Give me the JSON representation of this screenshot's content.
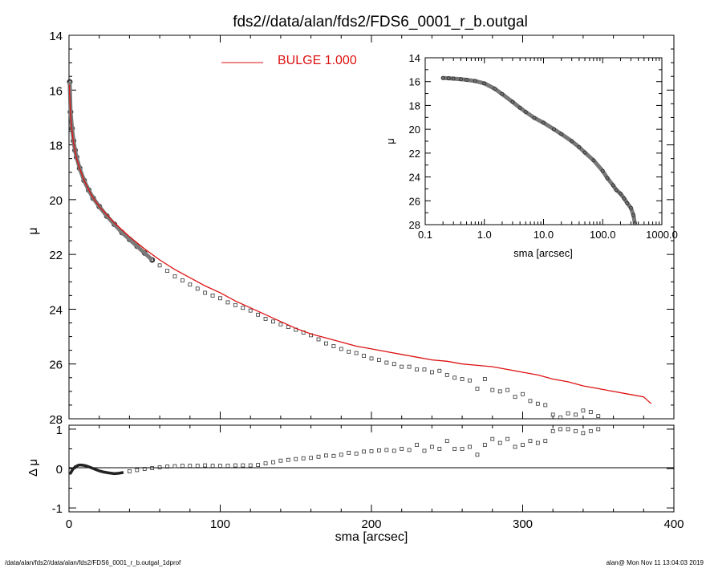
{
  "title": "fds2//data/alan/fds2/FDS6_0001_r_b.outgal",
  "footer": {
    "left": "/data/alan/fds2//data/alan/fds2/FDS6_0001_r_b.outgal_1dprof",
    "right": "alan@  Mon Nov 11 13:04:03 2019"
  },
  "colors": {
    "model": "#dd1111",
    "data": "#333333",
    "frame": "#000000"
  },
  "chart_data": [
    {
      "id": "main-profile",
      "type": "scatter",
      "ylabel": "μ",
      "xlim": [
        0,
        400
      ],
      "ylim": [
        28,
        14
      ],
      "y_inverted": true,
      "yticks": [
        "14",
        "16",
        "18",
        "20",
        "22",
        "24",
        "26",
        "28"
      ],
      "legend": {
        "label": "BULGE  1.000",
        "placement": "top-center",
        "color": "#dd1111"
      },
      "series": [
        {
          "name": "BULGE  1.000",
          "kind": "line",
          "x": [
            0.2,
            1,
            2,
            3,
            5,
            7,
            10,
            15,
            20,
            30,
            40,
            50,
            60,
            70,
            80,
            90,
            100,
            110,
            120,
            130,
            140,
            150,
            160,
            170,
            180,
            190,
            200,
            210,
            220,
            230,
            240,
            250,
            260,
            270,
            280,
            290,
            300,
            310,
            320,
            330,
            340,
            350,
            360,
            370,
            380,
            385
          ],
          "y": [
            15.8,
            16.9,
            17.5,
            17.95,
            18.5,
            18.85,
            19.3,
            19.85,
            20.25,
            20.85,
            21.35,
            21.8,
            22.2,
            22.55,
            22.85,
            23.15,
            23.4,
            23.7,
            23.95,
            24.2,
            24.45,
            24.7,
            24.9,
            25.05,
            25.2,
            25.35,
            25.45,
            25.55,
            25.65,
            25.75,
            25.85,
            25.9,
            26.0,
            26.05,
            26.1,
            26.2,
            26.3,
            26.4,
            26.55,
            26.65,
            26.8,
            26.9,
            27.0,
            27.1,
            27.2,
            27.45
          ]
        },
        {
          "kind": "points",
          "x": [
            0.5,
            1,
            2,
            3,
            4,
            5,
            7,
            10,
            13,
            16,
            20,
            25,
            30,
            35,
            40,
            45,
            50,
            55,
            60,
            65,
            70,
            75,
            80,
            85,
            90,
            95,
            100,
            105,
            110,
            115,
            120,
            125,
            130,
            135,
            140,
            145,
            150,
            155,
            160,
            165,
            170,
            175,
            180,
            185,
            190,
            195,
            200,
            205,
            210,
            215,
            220,
            225,
            230,
            235,
            240,
            245,
            250,
            255,
            260,
            265,
            270,
            275,
            280,
            285,
            290,
            295,
            300,
            305,
            310,
            315,
            320,
            325,
            330,
            335,
            340,
            345,
            350
          ],
          "y": [
            15.7,
            16.8,
            17.4,
            17.85,
            18.2,
            18.45,
            18.85,
            19.3,
            19.65,
            19.95,
            20.25,
            20.6,
            20.9,
            21.2,
            21.45,
            21.7,
            21.95,
            22.2,
            22.4,
            22.6,
            22.8,
            22.95,
            23.1,
            23.25,
            23.4,
            23.5,
            23.6,
            23.75,
            23.85,
            23.95,
            24.05,
            24.2,
            24.35,
            24.45,
            24.55,
            24.65,
            24.75,
            24.85,
            24.95,
            25.1,
            25.25,
            25.35,
            25.45,
            25.55,
            25.6,
            25.7,
            25.8,
            25.85,
            25.95,
            26.0,
            26.1,
            26.1,
            26.2,
            26.2,
            26.3,
            26.25,
            26.4,
            26.5,
            26.55,
            26.6,
            26.9,
            26.55,
            26.95,
            27.0,
            26.95,
            27.2,
            27.1,
            27.35,
            27.45,
            27.5,
            27.85,
            27.95,
            27.8,
            27.85,
            27.7,
            27.75,
            27.9
          ]
        }
      ]
    },
    {
      "id": "inset-log",
      "type": "scatter",
      "xlabel": "sma [arcsec]",
      "ylabel": "μ",
      "x_scale": "log",
      "xlim": [
        0.1,
        1000
      ],
      "ylim": [
        28,
        14
      ],
      "y_inverted": true,
      "xticks": [
        "0.1",
        "1.0",
        "10.0",
        "100.0",
        "1000.0"
      ],
      "yticks": [
        "14",
        "16",
        "18",
        "20",
        "22",
        "24",
        "26",
        "28"
      ],
      "series": [
        {
          "kind": "points",
          "x": [
            0.2,
            0.25,
            0.3,
            0.4,
            0.5,
            0.7,
            1.0,
            1.5,
            2,
            3,
            4,
            5,
            7,
            10,
            15,
            20,
            30,
            40,
            50,
            70,
            100,
            120,
            150,
            170,
            200,
            230,
            260,
            300,
            330,
            350
          ],
          "y": [
            15.7,
            15.72,
            15.75,
            15.8,
            15.85,
            15.95,
            16.15,
            16.6,
            17.05,
            17.7,
            18.2,
            18.55,
            19.05,
            19.45,
            20.0,
            20.4,
            21.0,
            21.5,
            21.95,
            22.6,
            23.5,
            24.1,
            24.7,
            25.1,
            25.4,
            25.8,
            26.2,
            26.6,
            27.2,
            27.9
          ]
        }
      ]
    },
    {
      "id": "residuals",
      "type": "scatter",
      "xlabel": "sma [arcsec]",
      "ylabel": "Δ μ",
      "xlim": [
        0,
        400
      ],
      "ylim": [
        -1.1,
        1.1
      ],
      "xticks": [
        "0",
        "100",
        "200",
        "300",
        "400"
      ],
      "yticks": [
        "1",
        "0",
        "-1"
      ],
      "reference_line": 0,
      "series": [
        {
          "kind": "points",
          "x": [
            0.5,
            1,
            2,
            3,
            4,
            5,
            6,
            7,
            8,
            10,
            12,
            14,
            16,
            18,
            20,
            23,
            26,
            30,
            33,
            36,
            40,
            45,
            50,
            55,
            60,
            65,
            70,
            75,
            80,
            85,
            90,
            95,
            100,
            105,
            110,
            115,
            120,
            125,
            130,
            135,
            140,
            145,
            150,
            155,
            160,
            165,
            170,
            175,
            180,
            185,
            190,
            195,
            200,
            205,
            210,
            215,
            220,
            225,
            230,
            235,
            240,
            245,
            250,
            255,
            260,
            265,
            270,
            275,
            280,
            285,
            290,
            295,
            300,
            305,
            310,
            315,
            320,
            325,
            330,
            335,
            340,
            345,
            350
          ],
          "y": [
            -0.1,
            -0.12,
            -0.05,
            0.0,
            0.04,
            0.06,
            0.08,
            0.09,
            0.09,
            0.08,
            0.06,
            0.03,
            0.0,
            -0.03,
            -0.06,
            -0.09,
            -0.11,
            -0.13,
            -0.12,
            -0.1,
            -0.07,
            -0.04,
            -0.01,
            0.01,
            0.03,
            0.05,
            0.06,
            0.07,
            0.07,
            0.07,
            0.08,
            0.07,
            0.07,
            0.07,
            0.08,
            0.08,
            0.08,
            0.09,
            0.13,
            0.16,
            0.2,
            0.22,
            0.24,
            0.26,
            0.27,
            0.3,
            0.33,
            0.32,
            0.35,
            0.4,
            0.38,
            0.43,
            0.44,
            0.46,
            0.47,
            0.45,
            0.5,
            0.47,
            0.6,
            0.45,
            0.55,
            0.5,
            0.7,
            0.5,
            0.5,
            0.55,
            0.35,
            0.6,
            0.75,
            0.65,
            0.75,
            0.55,
            0.6,
            0.7,
            0.65,
            0.7,
            0.95,
            1.0,
            1.0,
            0.95,
            0.9,
            0.95,
            1.0
          ]
        }
      ]
    }
  ]
}
